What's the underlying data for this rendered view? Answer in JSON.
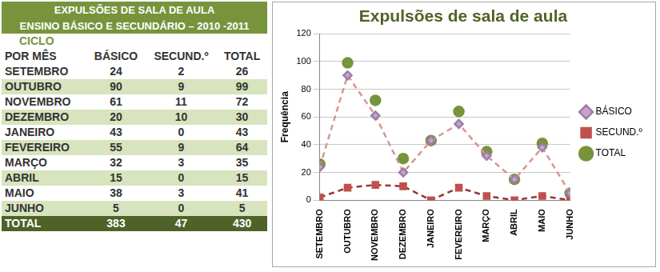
{
  "table": {
    "title": [
      "EXPULSÕES DE SALA DE AULA",
      "ENSINO BÁSICO E SECUNDÁRIO – 2010 -2011"
    ],
    "subtitle": "CICLO",
    "header": [
      "POR MÊS",
      "BÁSICO",
      "SECUND.º",
      "TOTAL"
    ],
    "rows": [
      [
        "SETEMBRO",
        24,
        2,
        26
      ],
      [
        "OUTUBRO",
        90,
        9,
        99
      ],
      [
        "NOVEMBRO",
        61,
        11,
        72
      ],
      [
        "DEZEMBRO",
        20,
        10,
        30
      ],
      [
        "JANEIRO",
        43,
        0,
        43
      ],
      [
        "FEVEREIRO",
        55,
        9,
        64
      ],
      [
        "MARÇO",
        32,
        3,
        35
      ],
      [
        "ABRIL",
        15,
        0,
        15
      ],
      [
        "MAIO",
        38,
        3,
        41
      ],
      [
        "JUNHO",
        5,
        0,
        5
      ]
    ],
    "total": [
      "TOTAL",
      383,
      47,
      430
    ]
  },
  "chart_data": {
    "type": "line",
    "title": "Expulsões de sala de aula",
    "y_label": "Frequência",
    "categories": [
      "SETEMBRO",
      "OUTUBRO",
      "NOVEMBRO",
      "DEZEMBRO",
      "JANEIRO",
      "FEVEREIRO",
      "MARÇO",
      "ABRIL",
      "MAIO",
      "JUNHO"
    ],
    "series": [
      {
        "name": "BÁSICO",
        "color": "#d99694",
        "marker": "diamond",
        "line_style": "dashed",
        "values": [
          24,
          90,
          61,
          20,
          43,
          55,
          32,
          15,
          38,
          5
        ]
      },
      {
        "name": "SECUND.º",
        "color": "#953735",
        "marker": "square",
        "line_style": "dashed",
        "values": [
          2,
          9,
          11,
          10,
          0,
          9,
          3,
          0,
          3,
          0
        ]
      },
      {
        "name": "TOTAL",
        "color": "#77933c",
        "marker": "circle",
        "line_style": "none",
        "values": [
          26,
          99,
          72,
          30,
          43,
          64,
          35,
          15,
          41,
          5
        ]
      }
    ],
    "ylim": [
      0,
      120
    ],
    "yticks": [
      0,
      20,
      40,
      60,
      80,
      100,
      120
    ],
    "grid": true,
    "legend": "right"
  }
}
